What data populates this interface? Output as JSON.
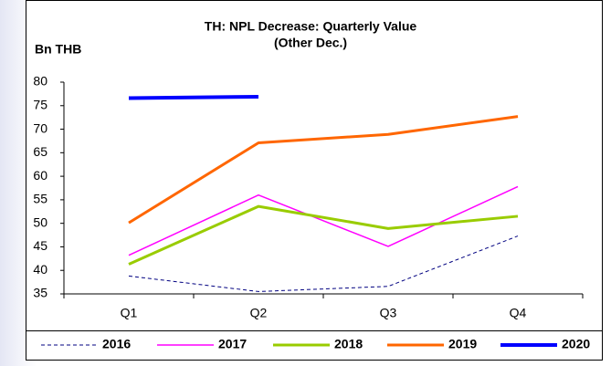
{
  "chart_data": {
    "type": "line",
    "title": [
      "TH: NPL Decrease: Quarterly Value",
      "(Other Dec.)"
    ],
    "y_label": "Bn THB",
    "categories": [
      "Q1",
      "Q2",
      "Q3",
      "Q4"
    ],
    "ylim": [
      35,
      80
    ],
    "yticks": [
      35,
      40,
      45,
      50,
      55,
      60,
      65,
      70,
      75,
      80
    ],
    "series": [
      {
        "name": "2016",
        "color": "#000080",
        "width": 1,
        "dash": true,
        "values": [
          38.8,
          35.5,
          36.6,
          47.3
        ]
      },
      {
        "name": "2017",
        "color": "#ff00ff",
        "width": 1.5,
        "dash": false,
        "values": [
          43.2,
          56.0,
          45.1,
          57.8
        ]
      },
      {
        "name": "2018",
        "color": "#99cc00",
        "width": 3,
        "dash": false,
        "values": [
          41.3,
          53.6,
          48.9,
          51.5
        ]
      },
      {
        "name": "2019",
        "color": "#ff6600",
        "width": 3,
        "dash": false,
        "values": [
          50.1,
          67.1,
          68.9,
          72.7
        ]
      },
      {
        "name": "2020",
        "color": "#0000ff",
        "width": 4,
        "dash": false,
        "values": [
          76.6,
          76.9,
          null,
          null
        ]
      }
    ],
    "legend": "bottom"
  }
}
